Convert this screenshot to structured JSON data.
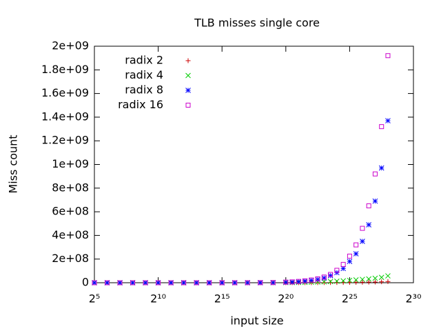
{
  "chart_data": {
    "type": "scatter",
    "title": "TLB misses single core",
    "xlabel": "input size",
    "ylabel": "Miss count",
    "xscale": "log2",
    "xlim": [
      32,
      1073741824
    ],
    "xticks": [
      {
        "value": 32,
        "label": "2⁵"
      },
      {
        "value": 1024,
        "label": "2¹⁰"
      },
      {
        "value": 32768,
        "label": "2¹⁵"
      },
      {
        "value": 1048576,
        "label": "2²⁰"
      },
      {
        "value": 33554432,
        "label": "2²⁵"
      },
      {
        "value": 1073741824,
        "label": "2³⁰"
      }
    ],
    "ylim": [
      0,
      2000000000
    ],
    "yticks": [
      0,
      {
        "value": 200000000,
        "label": "2e+08"
      },
      {
        "value": 400000000,
        "label": "4e+08"
      },
      {
        "value": 600000000,
        "label": "6e+08"
      },
      {
        "value": 800000000,
        "label": "8e+08"
      },
      {
        "value": 1000000000,
        "label": "1e+09"
      },
      {
        "value": 1200000000,
        "label": "1.2e+09"
      },
      {
        "value": 1400000000,
        "label": "1.4e+09"
      },
      {
        "value": 1600000000,
        "label": "1.6e+09"
      },
      {
        "value": 1800000000,
        "label": "1.8e+09"
      },
      {
        "value": 2000000000,
        "label": "2e+09"
      }
    ],
    "legend": "top-left",
    "x": [
      32,
      64,
      128,
      256,
      512,
      1024,
      2048,
      4096,
      8192,
      16384,
      32768,
      65536,
      131072,
      262144,
      524288,
      1048576,
      1482910,
      2097152,
      2965821,
      4194304,
      5931642,
      8388608,
      11863283,
      16777216,
      23726566,
      33554432,
      47453133,
      67108864,
      94906265,
      134217728,
      189812531,
      268435456
    ],
    "series": [
      {
        "name": "radix 2",
        "color": "#cc0000",
        "marker": "plus",
        "values": [
          0,
          0,
          0,
          0,
          0,
          0,
          0,
          0,
          0,
          0,
          0,
          0,
          100000,
          200000,
          300000,
          400000,
          500000,
          600000,
          700000,
          800000,
          1000000,
          1200000,
          1500000,
          1800000,
          2200000,
          2700000,
          3300000,
          4000000,
          5000000,
          6000000,
          8000000,
          10000000
        ]
      },
      {
        "name": "radix 4",
        "color": "#00cc00",
        "marker": "cross",
        "values": [
          0,
          0,
          0,
          0,
          0,
          0,
          0,
          0,
          0,
          0,
          0,
          0,
          200000,
          400000,
          700000,
          1000000,
          1500000,
          2000000,
          2800000,
          4000000,
          5500000,
          7000000,
          10000000,
          13000000,
          16000000,
          20000000,
          24000000,
          28000000,
          32000000,
          38000000,
          45000000,
          58000000
        ]
      },
      {
        "name": "radix 8",
        "color": "#0000ff",
        "marker": "star",
        "values": [
          0,
          0,
          0,
          0,
          0,
          0,
          0,
          0,
          0,
          0,
          0,
          0,
          300000,
          600000,
          1200000,
          4000000,
          6000000,
          9000000,
          14000000,
          20000000,
          28000000,
          40000000,
          60000000,
          85000000,
          120000000,
          180000000,
          245000000,
          350000000,
          490000000,
          690000000,
          970000000,
          1370000000
        ]
      },
      {
        "name": "radix 16",
        "color": "#cc00cc",
        "marker": "square",
        "values": [
          0,
          0,
          0,
          0,
          0,
          0,
          0,
          0,
          0,
          0,
          0,
          0,
          400000,
          800000,
          1500000,
          5000000,
          7000000,
          11000000,
          16000000,
          23000000,
          33000000,
          48000000,
          70000000,
          105000000,
          155000000,
          225000000,
          320000000,
          460000000,
          650000000,
          920000000,
          1320000000,
          1920000000
        ]
      }
    ]
  }
}
